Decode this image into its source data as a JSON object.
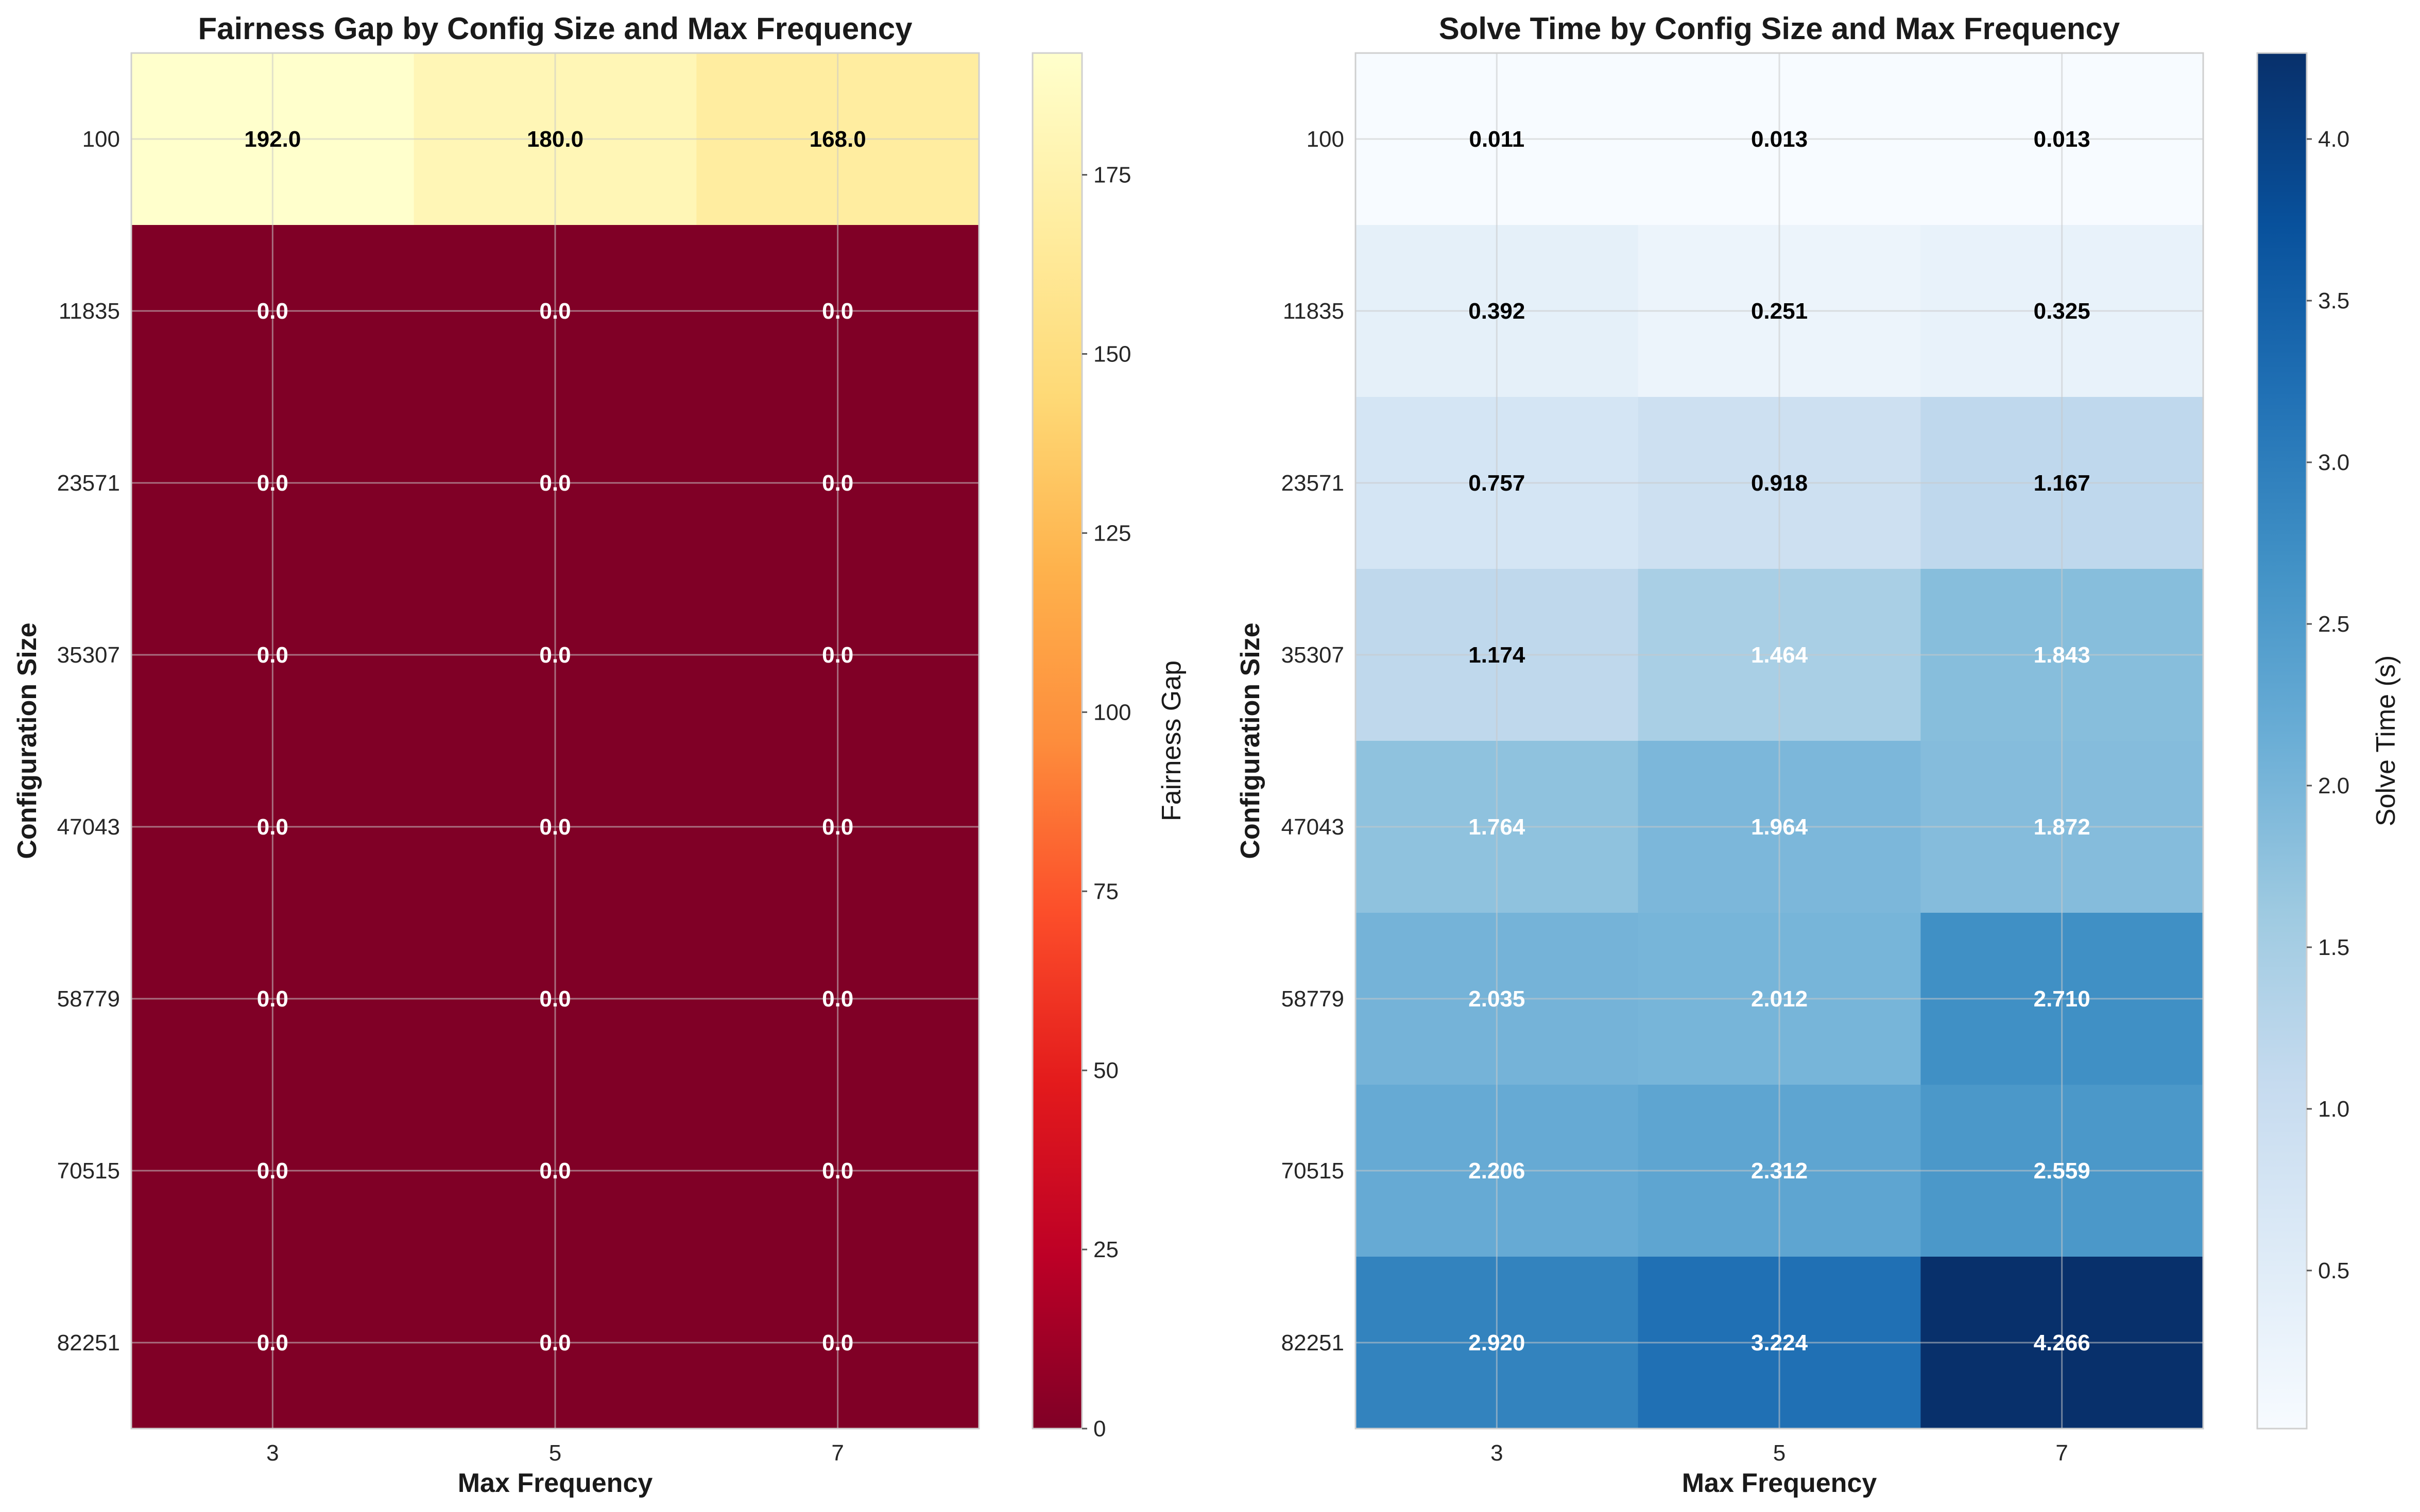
{
  "chart_data": [
    {
      "type": "heatmap",
      "title": "Fairness Gap by Config Size and Max Frequency",
      "xlabel": "Max Frequency",
      "ylabel": "Configuration Size",
      "x_categories": [
        "3",
        "5",
        "7"
      ],
      "y_categories": [
        "100",
        "11835",
        "23571",
        "35307",
        "47043",
        "58779",
        "70515",
        "82251"
      ],
      "values": [
        [
          192.0,
          180.0,
          168.0
        ],
        [
          0.0,
          0.0,
          0.0
        ],
        [
          0.0,
          0.0,
          0.0
        ],
        [
          0.0,
          0.0,
          0.0
        ],
        [
          0.0,
          0.0,
          0.0
        ],
        [
          0.0,
          0.0,
          0.0
        ],
        [
          0.0,
          0.0,
          0.0
        ],
        [
          0.0,
          0.0,
          0.0
        ]
      ],
      "value_labels": [
        [
          "192.0",
          "180.0",
          "168.0"
        ],
        [
          "0.0",
          "0.0",
          "0.0"
        ],
        [
          "0.0",
          "0.0",
          "0.0"
        ],
        [
          "0.0",
          "0.0",
          "0.0"
        ],
        [
          "0.0",
          "0.0",
          "0.0"
        ],
        [
          "0.0",
          "0.0",
          "0.0"
        ],
        [
          "0.0",
          "0.0",
          "0.0"
        ],
        [
          "0.0",
          "0.0",
          "0.0"
        ]
      ],
      "colormap": "YlOrRd_r",
      "colorbar": {
        "label": "Fairness Gap",
        "range": [
          0,
          192
        ],
        "ticks": [
          0,
          25,
          50,
          75,
          100,
          125,
          150,
          175
        ],
        "tick_labels": [
          "0",
          "25",
          "50",
          "75",
          "100",
          "125",
          "150",
          "175"
        ]
      },
      "grid": true
    },
    {
      "type": "heatmap",
      "title": "Solve Time by Config Size and Max Frequency",
      "xlabel": "Max Frequency",
      "ylabel": "Configuration Size",
      "x_categories": [
        "3",
        "5",
        "7"
      ],
      "y_categories": [
        "100",
        "11835",
        "23571",
        "35307",
        "47043",
        "58779",
        "70515",
        "82251"
      ],
      "values": [
        [
          0.011,
          0.013,
          0.013
        ],
        [
          0.392,
          0.251,
          0.325
        ],
        [
          0.757,
          0.918,
          1.167
        ],
        [
          1.174,
          1.464,
          1.843
        ],
        [
          1.764,
          1.964,
          1.872
        ],
        [
          2.035,
          2.012,
          2.71
        ],
        [
          2.206,
          2.312,
          2.559
        ],
        [
          2.92,
          3.224,
          4.266
        ]
      ],
      "value_labels": [
        [
          "0.011",
          "0.013",
          "0.013"
        ],
        [
          "0.392",
          "0.251",
          "0.325"
        ],
        [
          "0.757",
          "0.918",
          "1.167"
        ],
        [
          "1.174",
          "1.464",
          "1.843"
        ],
        [
          "1.764",
          "1.964",
          "1.872"
        ],
        [
          "2.035",
          "2.012",
          "2.710"
        ],
        [
          "2.206",
          "2.312",
          "2.559"
        ],
        [
          "2.920",
          "3.224",
          "4.266"
        ]
      ],
      "colormap": "Blues",
      "colorbar": {
        "label": "Solve Time (s)",
        "range": [
          0.011,
          4.266
        ],
        "ticks": [
          0.5,
          1.0,
          1.5,
          2.0,
          2.5,
          3.0,
          3.5,
          4.0
        ],
        "tick_labels": [
          "0.5",
          "1.0",
          "1.5",
          "2.0",
          "2.5",
          "3.0",
          "3.5",
          "4.0"
        ]
      },
      "grid": true
    }
  ]
}
